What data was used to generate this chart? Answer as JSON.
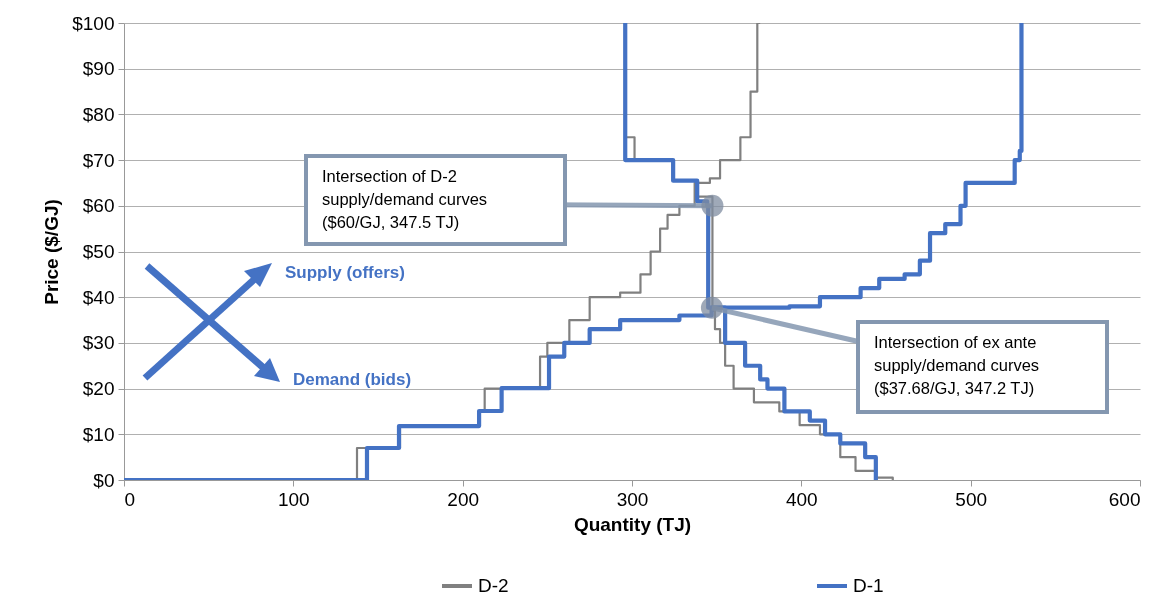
{
  "chart_data": {
    "type": "step",
    "xlabel": "Quantity (TJ)",
    "ylabel": "Price ($/GJ)",
    "xlim": [
      0,
      600
    ],
    "xticks": [
      0,
      100,
      200,
      300,
      400,
      500,
      600
    ],
    "ylim": [
      0,
      100
    ],
    "yticks": [
      {
        "value": 0,
        "label": "$0"
      },
      {
        "value": 10,
        "label": "$10"
      },
      {
        "value": 20,
        "label": "$20"
      },
      {
        "value": 30,
        "label": "$30"
      },
      {
        "value": 40,
        "label": "$40"
      },
      {
        "value": 50,
        "label": "$50"
      },
      {
        "value": 60,
        "label": "$60"
      },
      {
        "value": 70,
        "label": "$70"
      },
      {
        "value": 80,
        "label": "$80"
      },
      {
        "value": 90,
        "label": "$90"
      },
      {
        "value": 100,
        "label": "$100"
      }
    ],
    "grid": "y",
    "legend": "bottom",
    "series": [
      {
        "name": "D-2",
        "color": "#808080",
        "x": [
          0,
          137.6,
          163,
          210,
          213,
          216,
          245.7,
          250,
          263,
          275,
          293,
          305,
          311,
          316.6,
          321,
          328,
          337,
          346,
          352,
          364,
          370,
          374,
          375.7,
          375.7
        ],
        "values": [
          0,
          7,
          12,
          15,
          20,
          20,
          27,
          30,
          35,
          40,
          41,
          45,
          50,
          55,
          58,
          60,
          65,
          66,
          70,
          75,
          85,
          100,
          100,
          100
        ]
      },
      {
        "color": "#808080",
        "x": [
          296,
          296,
          301.5,
          324,
          338,
          347.5,
          347.5,
          349,
          352,
          355,
          360,
          372,
          387,
          399,
          411,
          423,
          432,
          443.6,
          454
        ],
        "values": [
          100,
          75,
          70,
          65.5,
          62,
          60,
          37,
          33,
          30,
          25,
          20,
          17,
          15,
          12,
          10,
          5,
          2,
          0.5,
          0
        ]
      },
      {
        "name": "D-1",
        "color": "#4472c4",
        "x": [
          0,
          143.5,
          162.4,
          209.7,
          223,
          245.7,
          251,
          260,
          275,
          293,
          328,
          347,
          393,
          411,
          435,
          446,
          461,
          470,
          476,
          485,
          494,
          497,
          523,
          526,
          529,
          530,
          530
        ],
        "values": [
          0,
          7,
          11.8,
          15.1,
          20.1,
          20.1,
          27,
          30,
          33,
          35,
          36,
          37.7,
          38,
          40,
          42,
          44,
          45,
          48,
          54,
          56,
          60,
          65,
          65,
          70,
          72,
          100,
          100
        ]
      },
      {
        "color": "#4472c4",
        "x": [
          296,
          296,
          324.3,
          338.5,
          344.4,
          345,
          345,
          355,
          366.8,
          375.7,
          380,
          390,
          405,
          414,
          423,
          437.7,
          444,
          444
        ],
        "values": [
          100,
          70,
          65.5,
          61,
          60,
          60,
          37.7,
          30,
          25,
          22,
          20,
          15,
          13,
          10,
          8,
          5,
          0,
          0
        ]
      }
    ],
    "annotations": [
      {
        "text": "Intersection of D-2 supply/demand curves ($60/GJ, 347.5 TJ)",
        "x": 347.5,
        "y": 60
      },
      {
        "text": "Intersection of ex ante supply/demand curves ($37.68/GJ, 347.2 TJ)",
        "x": 347.2,
        "y": 37.68
      },
      "Supply (offers)",
      "Demand (bids)"
    ]
  }
}
